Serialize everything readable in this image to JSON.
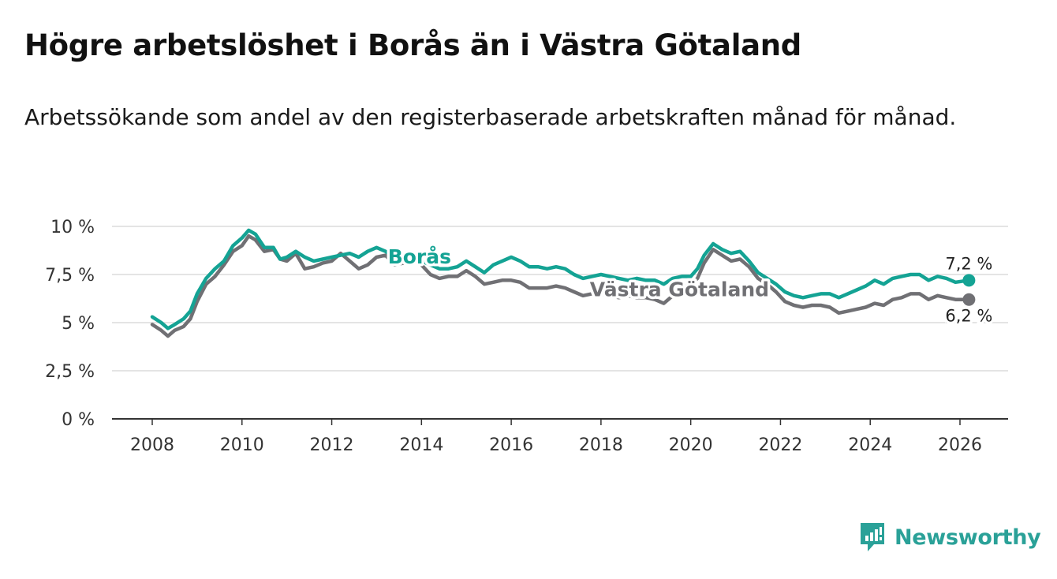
{
  "title": "Högre arbetslöshet i Borås än i Västra Götaland",
  "subtitle": "Arbetssökande som andel av den registerbaserade arbetskraften månad för månad.",
  "brand": "Newsworthy",
  "colors": {
    "boras": "#14a394",
    "vg": "#707074",
    "brand": "#2aa198"
  },
  "chart_data": {
    "type": "line",
    "ylim": [
      0,
      10
    ],
    "xlim": [
      2007.75,
      2027.0
    ],
    "y_ticks": [
      {
        "value": 0,
        "label": "0 %"
      },
      {
        "value": 2.5,
        "label": "2,5 %"
      },
      {
        "value": 5,
        "label": "5 %"
      },
      {
        "value": 7.5,
        "label": "7,5 %"
      },
      {
        "value": 10,
        "label": "10 %"
      }
    ],
    "x_ticks": [
      {
        "value": 2008,
        "label": "2008"
      },
      {
        "value": 2010,
        "label": "2010"
      },
      {
        "value": 2012,
        "label": "2012"
      },
      {
        "value": 2014,
        "label": "2014"
      },
      {
        "value": 2016,
        "label": "2016"
      },
      {
        "value": 2018,
        "label": "2018"
      },
      {
        "value": 2020,
        "label": "2020"
      },
      {
        "value": 2022,
        "label": "2022"
      },
      {
        "value": 2024,
        "label": "2024"
      },
      {
        "value": 2026,
        "label": "2026"
      }
    ],
    "series": [
      {
        "name": "Borås",
        "label_x": 2014.15,
        "label_y": 8.4,
        "end_label": "7,2 %",
        "points": [
          [
            2008.0,
            5.3
          ],
          [
            2008.2,
            5.0
          ],
          [
            2008.35,
            4.7
          ],
          [
            2008.5,
            4.9
          ],
          [
            2008.7,
            5.2
          ],
          [
            2008.85,
            5.6
          ],
          [
            2009.0,
            6.5
          ],
          [
            2009.2,
            7.3
          ],
          [
            2009.4,
            7.8
          ],
          [
            2009.6,
            8.2
          ],
          [
            2009.8,
            9.0
          ],
          [
            2010.0,
            9.4
          ],
          [
            2010.15,
            9.8
          ],
          [
            2010.3,
            9.6
          ],
          [
            2010.5,
            8.9
          ],
          [
            2010.7,
            8.9
          ],
          [
            2010.85,
            8.3
          ],
          [
            2011.0,
            8.4
          ],
          [
            2011.2,
            8.7
          ],
          [
            2011.4,
            8.4
          ],
          [
            2011.6,
            8.2
          ],
          [
            2011.8,
            8.3
          ],
          [
            2012.0,
            8.4
          ],
          [
            2012.2,
            8.5
          ],
          [
            2012.4,
            8.6
          ],
          [
            2012.6,
            8.4
          ],
          [
            2012.8,
            8.7
          ],
          [
            2013.0,
            8.9
          ],
          [
            2013.2,
            8.7
          ],
          [
            2013.4,
            8.4
          ],
          [
            2013.6,
            8.2
          ],
          [
            2013.8,
            8.3
          ],
          [
            2014.0,
            8.2
          ],
          [
            2014.2,
            8.0
          ],
          [
            2014.4,
            7.8
          ],
          [
            2014.6,
            7.8
          ],
          [
            2014.8,
            7.9
          ],
          [
            2015.0,
            8.2
          ],
          [
            2015.2,
            7.9
          ],
          [
            2015.4,
            7.6
          ],
          [
            2015.6,
            8.0
          ],
          [
            2015.8,
            8.2
          ],
          [
            2016.0,
            8.4
          ],
          [
            2016.2,
            8.2
          ],
          [
            2016.4,
            7.9
          ],
          [
            2016.6,
            7.9
          ],
          [
            2016.8,
            7.8
          ],
          [
            2017.0,
            7.9
          ],
          [
            2017.2,
            7.8
          ],
          [
            2017.4,
            7.5
          ],
          [
            2017.6,
            7.3
          ],
          [
            2017.8,
            7.4
          ],
          [
            2018.0,
            7.5
          ],
          [
            2018.2,
            7.4
          ],
          [
            2018.4,
            7.3
          ],
          [
            2018.6,
            7.2
          ],
          [
            2018.8,
            7.3
          ],
          [
            2019.0,
            7.2
          ],
          [
            2019.2,
            7.2
          ],
          [
            2019.4,
            7.0
          ],
          [
            2019.6,
            7.3
          ],
          [
            2019.8,
            7.4
          ],
          [
            2020.0,
            7.4
          ],
          [
            2020.15,
            7.8
          ],
          [
            2020.3,
            8.5
          ],
          [
            2020.5,
            9.1
          ],
          [
            2020.7,
            8.8
          ],
          [
            2020.9,
            8.6
          ],
          [
            2021.1,
            8.7
          ],
          [
            2021.3,
            8.2
          ],
          [
            2021.5,
            7.6
          ],
          [
            2021.7,
            7.3
          ],
          [
            2021.9,
            7.0
          ],
          [
            2022.1,
            6.6
          ],
          [
            2022.3,
            6.4
          ],
          [
            2022.5,
            6.3
          ],
          [
            2022.7,
            6.4
          ],
          [
            2022.9,
            6.5
          ],
          [
            2023.1,
            6.5
          ],
          [
            2023.3,
            6.3
          ],
          [
            2023.5,
            6.5
          ],
          [
            2023.7,
            6.7
          ],
          [
            2023.9,
            6.9
          ],
          [
            2024.1,
            7.2
          ],
          [
            2024.3,
            7.0
          ],
          [
            2024.5,
            7.3
          ],
          [
            2024.7,
            7.4
          ],
          [
            2024.9,
            7.5
          ],
          [
            2025.1,
            7.5
          ],
          [
            2025.3,
            7.2
          ],
          [
            2025.5,
            7.4
          ],
          [
            2025.7,
            7.3
          ],
          [
            2025.9,
            7.1
          ],
          [
            2026.2,
            7.2
          ]
        ]
      },
      {
        "name": "Västra Götaland",
        "label_x": 2018.8,
        "label_y": 6.7,
        "end_label": "6,2 %",
        "points": [
          [
            2008.0,
            4.9
          ],
          [
            2008.2,
            4.6
          ],
          [
            2008.35,
            4.3
          ],
          [
            2008.5,
            4.6
          ],
          [
            2008.7,
            4.8
          ],
          [
            2008.85,
            5.2
          ],
          [
            2009.0,
            6.1
          ],
          [
            2009.2,
            7.0
          ],
          [
            2009.4,
            7.4
          ],
          [
            2009.6,
            8.0
          ],
          [
            2009.8,
            8.7
          ],
          [
            2010.0,
            9.0
          ],
          [
            2010.15,
            9.5
          ],
          [
            2010.3,
            9.3
          ],
          [
            2010.5,
            8.7
          ],
          [
            2010.7,
            8.8
          ],
          [
            2010.85,
            8.3
          ],
          [
            2011.0,
            8.2
          ],
          [
            2011.2,
            8.6
          ],
          [
            2011.4,
            7.8
          ],
          [
            2011.6,
            7.9
          ],
          [
            2011.8,
            8.1
          ],
          [
            2012.0,
            8.2
          ],
          [
            2012.2,
            8.6
          ],
          [
            2012.4,
            8.2
          ],
          [
            2012.6,
            7.8
          ],
          [
            2012.8,
            8.0
          ],
          [
            2013.0,
            8.4
          ],
          [
            2013.2,
            8.5
          ],
          [
            2013.4,
            8.0
          ],
          [
            2013.6,
            8.1
          ],
          [
            2013.8,
            8.2
          ],
          [
            2014.0,
            8.0
          ],
          [
            2014.2,
            7.5
          ],
          [
            2014.4,
            7.3
          ],
          [
            2014.6,
            7.4
          ],
          [
            2014.8,
            7.4
          ],
          [
            2015.0,
            7.7
          ],
          [
            2015.2,
            7.4
          ],
          [
            2015.4,
            7.0
          ],
          [
            2015.6,
            7.1
          ],
          [
            2015.8,
            7.2
          ],
          [
            2016.0,
            7.2
          ],
          [
            2016.2,
            7.1
          ],
          [
            2016.4,
            6.8
          ],
          [
            2016.6,
            6.8
          ],
          [
            2016.8,
            6.8
          ],
          [
            2017.0,
            6.9
          ],
          [
            2017.2,
            6.8
          ],
          [
            2017.4,
            6.6
          ],
          [
            2017.6,
            6.4
          ],
          [
            2017.8,
            6.5
          ],
          [
            2018.0,
            6.5
          ],
          [
            2018.2,
            6.4
          ],
          [
            2018.4,
            6.3
          ],
          [
            2018.6,
            6.4
          ],
          [
            2018.8,
            6.3
          ],
          [
            2019.0,
            6.3
          ],
          [
            2019.2,
            6.2
          ],
          [
            2019.4,
            6.0
          ],
          [
            2019.6,
            6.4
          ],
          [
            2019.8,
            6.8
          ],
          [
            2020.0,
            7.0
          ],
          [
            2020.15,
            7.3
          ],
          [
            2020.3,
            8.1
          ],
          [
            2020.5,
            8.8
          ],
          [
            2020.7,
            8.5
          ],
          [
            2020.9,
            8.2
          ],
          [
            2021.1,
            8.3
          ],
          [
            2021.3,
            7.9
          ],
          [
            2021.5,
            7.3
          ],
          [
            2021.7,
            7.0
          ],
          [
            2021.9,
            6.6
          ],
          [
            2022.1,
            6.1
          ],
          [
            2022.3,
            5.9
          ],
          [
            2022.5,
            5.8
          ],
          [
            2022.7,
            5.9
          ],
          [
            2022.9,
            5.9
          ],
          [
            2023.1,
            5.8
          ],
          [
            2023.3,
            5.5
          ],
          [
            2023.5,
            5.6
          ],
          [
            2023.7,
            5.7
          ],
          [
            2023.9,
            5.8
          ],
          [
            2024.1,
            6.0
          ],
          [
            2024.3,
            5.9
          ],
          [
            2024.5,
            6.2
          ],
          [
            2024.7,
            6.3
          ],
          [
            2024.9,
            6.5
          ],
          [
            2025.1,
            6.5
          ],
          [
            2025.3,
            6.2
          ],
          [
            2025.5,
            6.4
          ],
          [
            2025.7,
            6.3
          ],
          [
            2025.9,
            6.2
          ],
          [
            2026.2,
            6.2
          ]
        ]
      }
    ]
  }
}
